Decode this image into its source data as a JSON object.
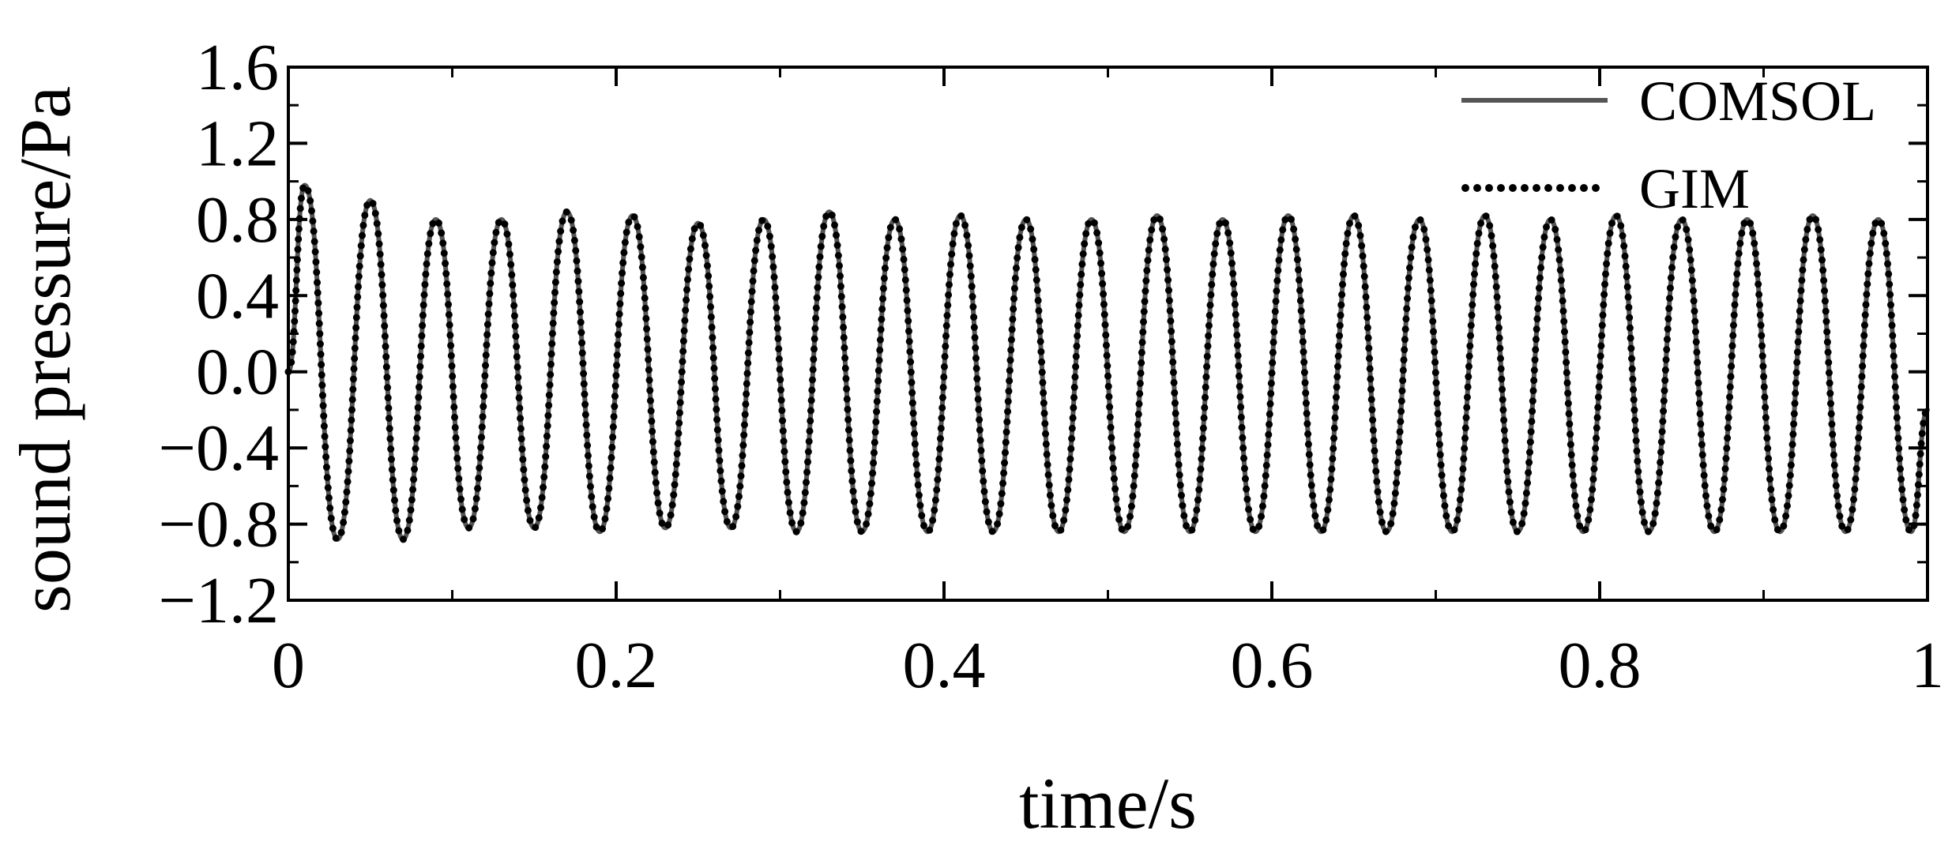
{
  "chart_data": {
    "type": "line",
    "title": "",
    "xlabel": "time/s",
    "ylabel": "sound pressure/Pa",
    "xlim": [
      0,
      1
    ],
    "ylim": [
      -1.2,
      1.6
    ],
    "x_ticks": [
      "0",
      "0.2",
      "0.4",
      "0.6",
      "0.8",
      "1"
    ],
    "y_ticks": [
      "−1.2",
      "−0.8",
      "−0.4",
      "0.0",
      "0.4",
      "0.8",
      "1.2",
      "1.6"
    ],
    "grid": false,
    "legend_position": "top-right",
    "colors": {
      "comsol": "#555555",
      "gim": "#000000"
    },
    "series": [
      {
        "name": "COMSOL",
        "style": "solid",
        "x": [
          0,
          0.01,
          0.03,
          0.05,
          0.07,
          0.09,
          0.11,
          0.13,
          0.15,
          0.17,
          0.19,
          0.21,
          0.23,
          0.25,
          0.27,
          0.29,
          0.31,
          0.33,
          0.35,
          0.37,
          0.39,
          0.41,
          0.43,
          0.45,
          0.47,
          0.49,
          0.51,
          0.53,
          0.55,
          0.57,
          0.59,
          0.61,
          0.63,
          0.65,
          0.67,
          0.69,
          0.71,
          0.73,
          0.75,
          0.77,
          0.79,
          0.81,
          0.83,
          0.85,
          0.87,
          0.89,
          0.91,
          0.93,
          0.95,
          0.97,
          0.99,
          1.0
        ],
        "y": [
          0,
          0.98,
          -0.88,
          0.9,
          -0.88,
          0.8,
          -0.82,
          0.8,
          -0.82,
          0.84,
          -0.84,
          0.82,
          -0.82,
          0.78,
          -0.82,
          0.8,
          -0.84,
          0.84,
          -0.84,
          0.8,
          -0.84,
          0.82,
          -0.84,
          0.8,
          -0.84,
          0.8,
          -0.84,
          0.82,
          -0.84,
          0.8,
          -0.84,
          0.82,
          -0.84,
          0.82,
          -0.84,
          0.8,
          -0.84,
          0.82,
          -0.84,
          0.8,
          -0.84,
          0.82,
          -0.84,
          0.8,
          -0.84,
          0.8,
          -0.84,
          0.82,
          -0.84,
          0.8,
          -0.84,
          -0.2
        ]
      },
      {
        "name": "GIM",
        "style": "dotted",
        "x": [
          0,
          0.01,
          0.03,
          0.05,
          0.07,
          0.09,
          0.11,
          0.13,
          0.15,
          0.17,
          0.19,
          0.21,
          0.23,
          0.25,
          0.27,
          0.29,
          0.31,
          0.33,
          0.35,
          0.37,
          0.39,
          0.41,
          0.43,
          0.45,
          0.47,
          0.49,
          0.51,
          0.53,
          0.55,
          0.57,
          0.59,
          0.61,
          0.63,
          0.65,
          0.67,
          0.69,
          0.71,
          0.73,
          0.75,
          0.77,
          0.79,
          0.81,
          0.83,
          0.85,
          0.87,
          0.89,
          0.91,
          0.93,
          0.95,
          0.97,
          0.99,
          1.0
        ],
        "y": [
          0,
          0.98,
          -0.88,
          0.9,
          -0.88,
          0.8,
          -0.82,
          0.8,
          -0.82,
          0.84,
          -0.84,
          0.82,
          -0.82,
          0.78,
          -0.82,
          0.8,
          -0.84,
          0.84,
          -0.84,
          0.8,
          -0.84,
          0.82,
          -0.84,
          0.8,
          -0.84,
          0.8,
          -0.84,
          0.82,
          -0.84,
          0.8,
          -0.84,
          0.82,
          -0.84,
          0.82,
          -0.84,
          0.8,
          -0.84,
          0.82,
          -0.84,
          0.8,
          -0.84,
          0.82,
          -0.84,
          0.8,
          -0.84,
          0.8,
          -0.84,
          0.82,
          -0.84,
          0.8,
          -0.84,
          -0.2
        ]
      }
    ]
  }
}
